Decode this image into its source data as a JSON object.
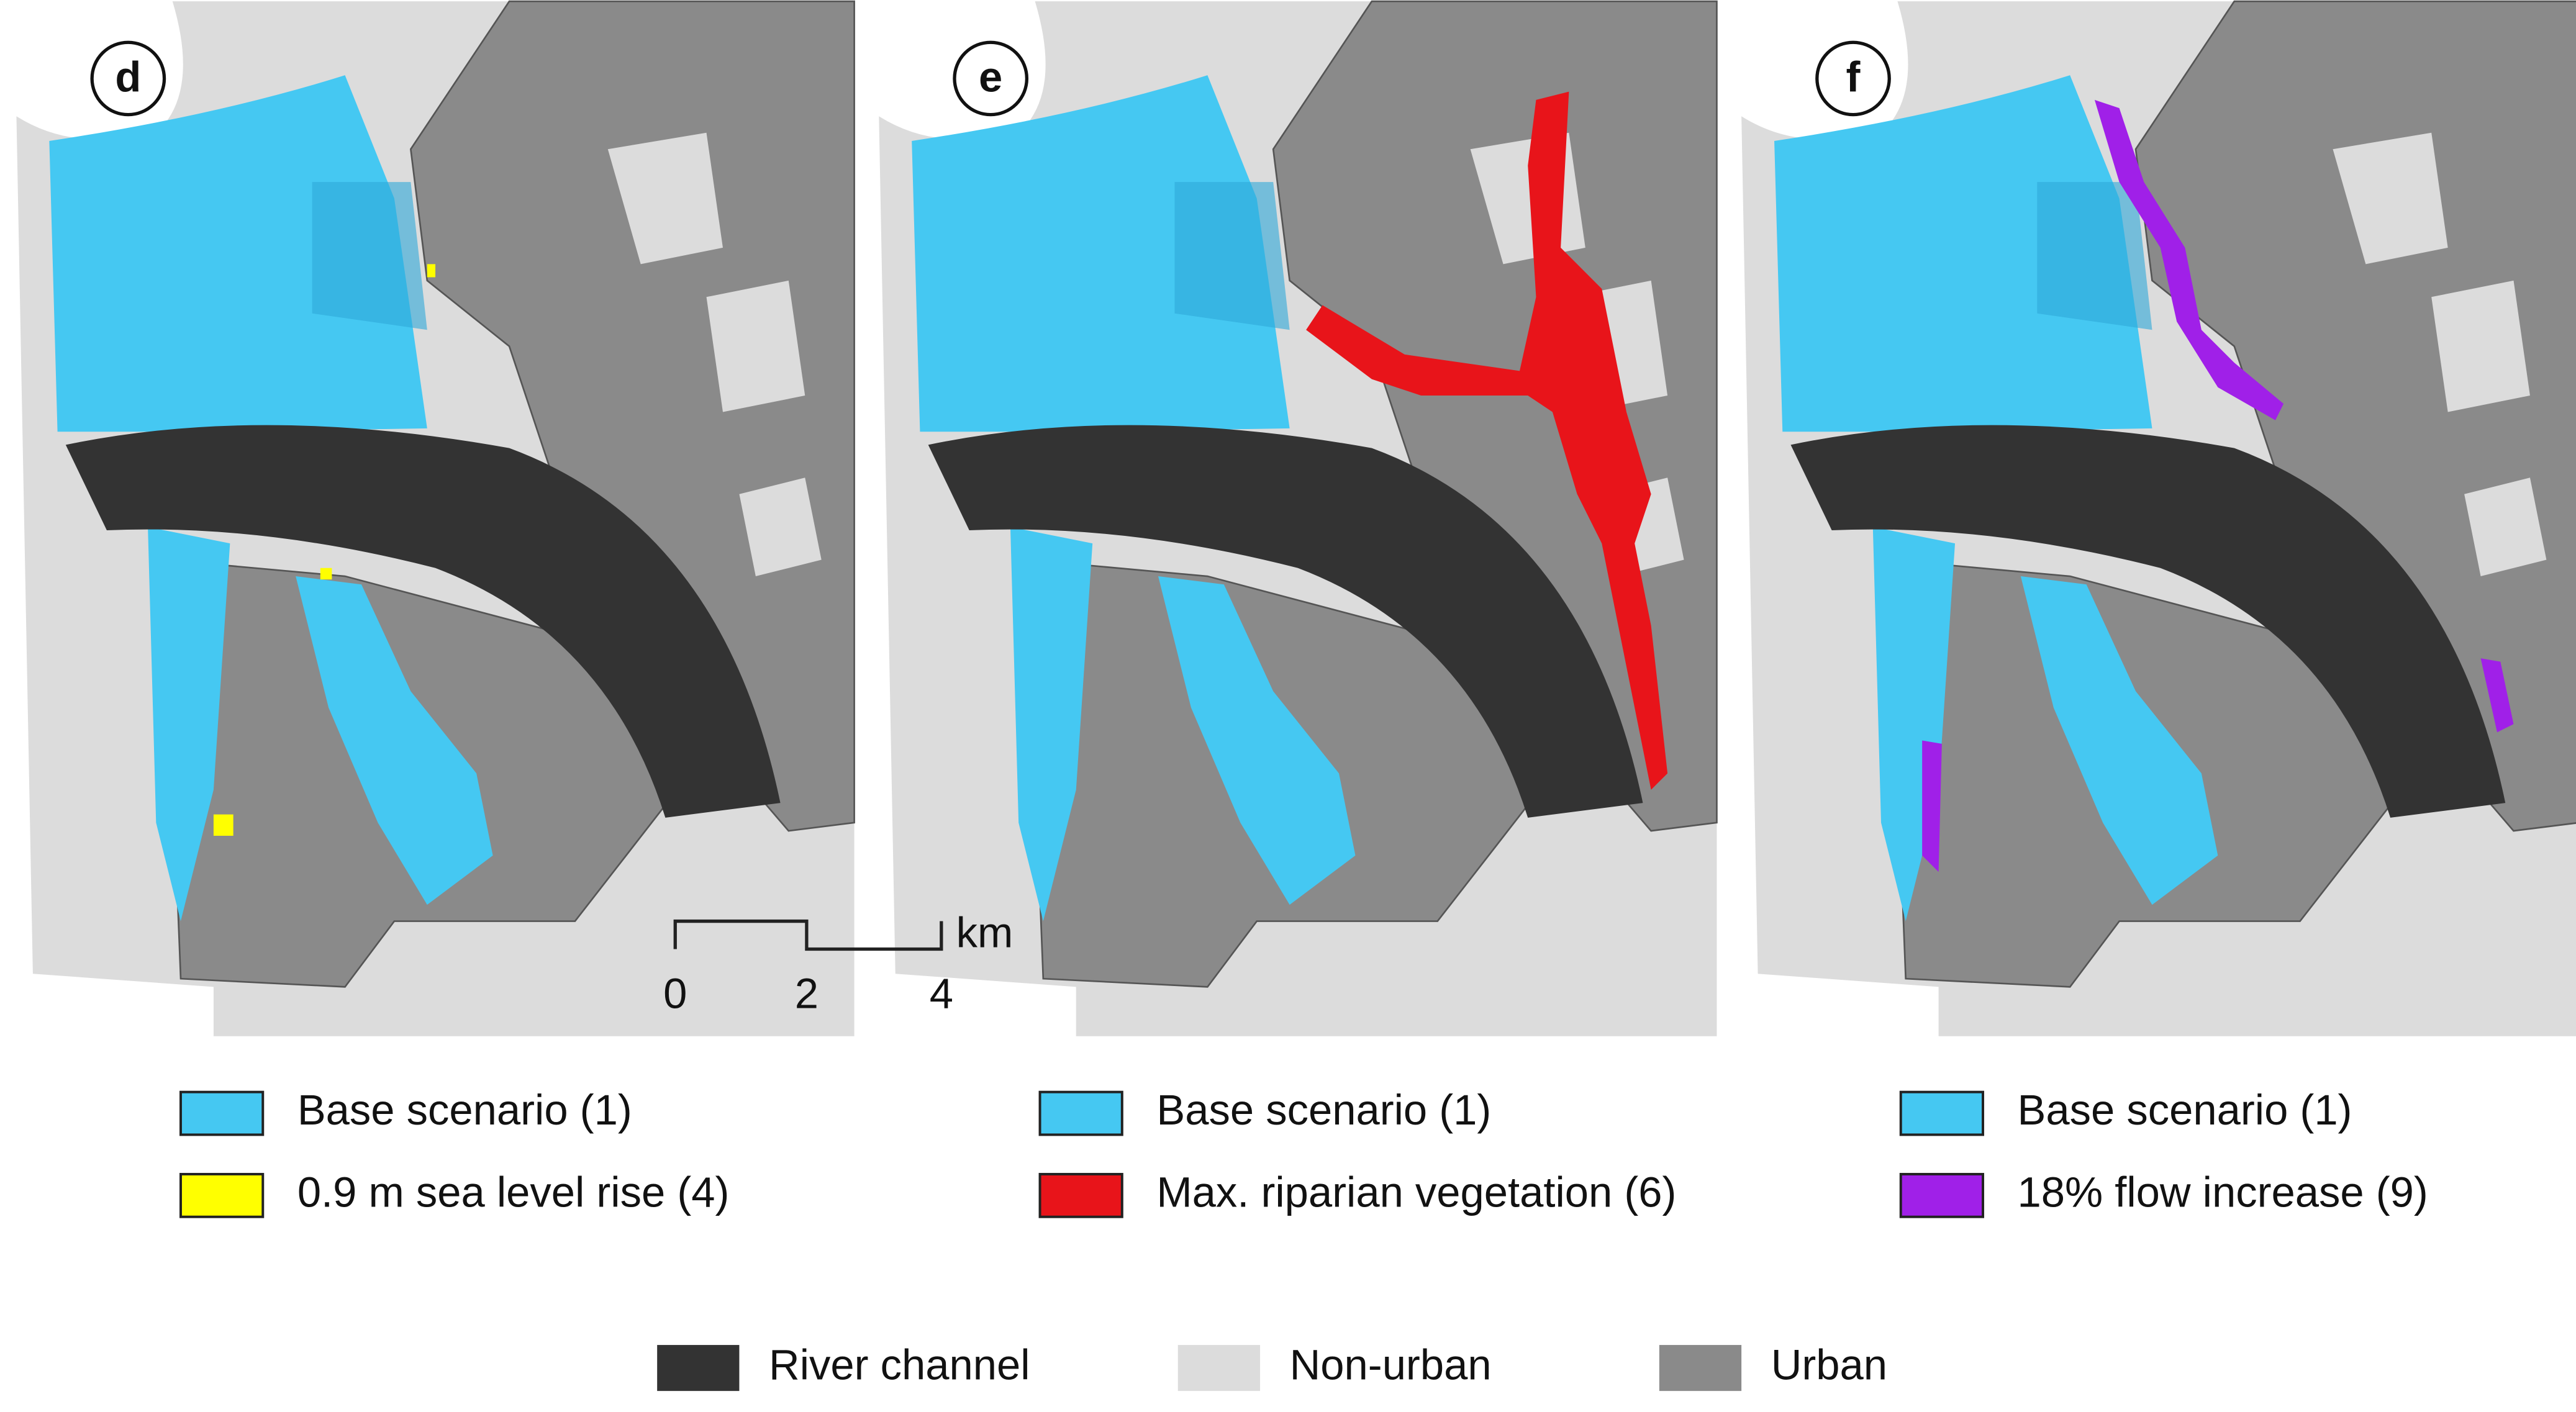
{
  "panels": [
    {
      "label": "d",
      "legend": [
        {
          "label": "Base scenario (1)",
          "color": "#45c8f2"
        },
        {
          "label": "0.9 m sea level rise (4)",
          "color": "#ffff00"
        }
      ]
    },
    {
      "label": "e",
      "legend": [
        {
          "label": "Base scenario (1)",
          "color": "#45c8f2"
        },
        {
          "label": "Max. riparian vegetation (6)",
          "color": "#e8141a"
        }
      ]
    },
    {
      "label": "f",
      "legend": [
        {
          "label": "Base scenario (1)",
          "color": "#45c8f2"
        },
        {
          "label": "18% flow increase (9)",
          "color": "#a020e8"
        }
      ]
    }
  ],
  "scale_bar": {
    "ticks": [
      "0",
      "2",
      "4"
    ],
    "unit": "km"
  },
  "legend": [
    {
      "label": "River channel",
      "color": "#333333"
    },
    {
      "label": "Non-urban",
      "color": "#dcdcdc"
    },
    {
      "label": "Urban",
      "color": "#8a8a8a"
    }
  ]
}
